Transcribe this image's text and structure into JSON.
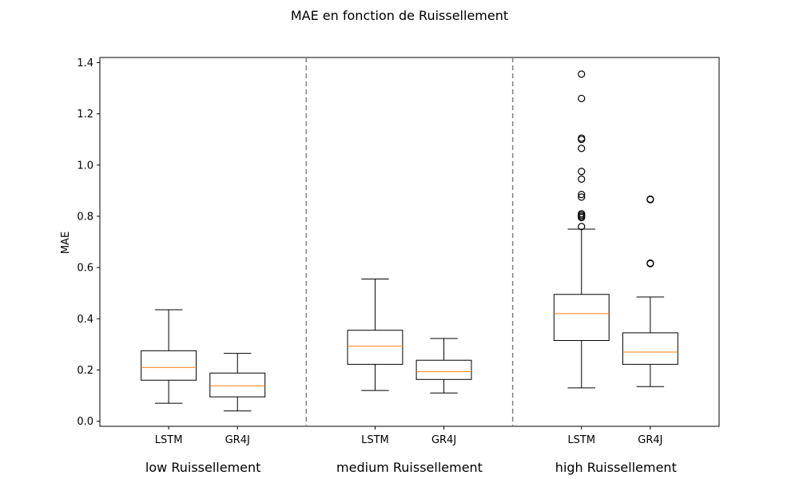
{
  "chart_data": {
    "type": "box",
    "title": "MAE en fonction de Ruissellement",
    "xlabel": "",
    "ylabel": "MAE",
    "ylim": [
      -0.02,
      1.42
    ],
    "yticks": [
      "0.0",
      "0.2",
      "0.4",
      "0.6",
      "0.8",
      "1.0",
      "1.2",
      "1.4"
    ],
    "ytick_values": [
      0.0,
      0.2,
      0.4,
      0.6,
      0.8,
      1.0,
      1.2,
      1.4
    ],
    "grid": false,
    "colors": {
      "box": "#000000",
      "median": "#ff7f0e",
      "separator": "#808080"
    },
    "groups": [
      {
        "label": "low Ruissellement",
        "boxes": [
          {
            "label": "LSTM",
            "whisker_low": 0.07,
            "q1": 0.16,
            "median": 0.21,
            "q3": 0.275,
            "whisker_high": 0.435,
            "outliers": []
          },
          {
            "label": "GR4J",
            "whisker_low": 0.04,
            "q1": 0.095,
            "median": 0.138,
            "q3": 0.188,
            "whisker_high": 0.265,
            "outliers": []
          }
        ]
      },
      {
        "label": "medium Ruissellement",
        "boxes": [
          {
            "label": "LSTM",
            "whisker_low": 0.12,
            "q1": 0.222,
            "median": 0.293,
            "q3": 0.355,
            "whisker_high": 0.555,
            "outliers": []
          },
          {
            "label": "GR4J",
            "whisker_low": 0.11,
            "q1": 0.163,
            "median": 0.193,
            "q3": 0.238,
            "whisker_high": 0.323,
            "outliers": []
          }
        ]
      },
      {
        "label": "high Ruissellement",
        "boxes": [
          {
            "label": "LSTM",
            "whisker_low": 0.13,
            "q1": 0.315,
            "median": 0.42,
            "q3": 0.495,
            "whisker_high": 0.75,
            "outliers": [
              0.76,
              0.795,
              0.8,
              0.805,
              0.81,
              0.875,
              0.885,
              0.945,
              0.975,
              1.065,
              1.1,
              1.105,
              1.26,
              1.355
            ]
          },
          {
            "label": "GR4J",
            "whisker_low": 0.135,
            "q1": 0.222,
            "median": 0.27,
            "q3": 0.345,
            "whisker_high": 0.485,
            "outliers": [
              0.615,
              0.617,
              0.865,
              0.867
            ]
          }
        ]
      }
    ]
  }
}
